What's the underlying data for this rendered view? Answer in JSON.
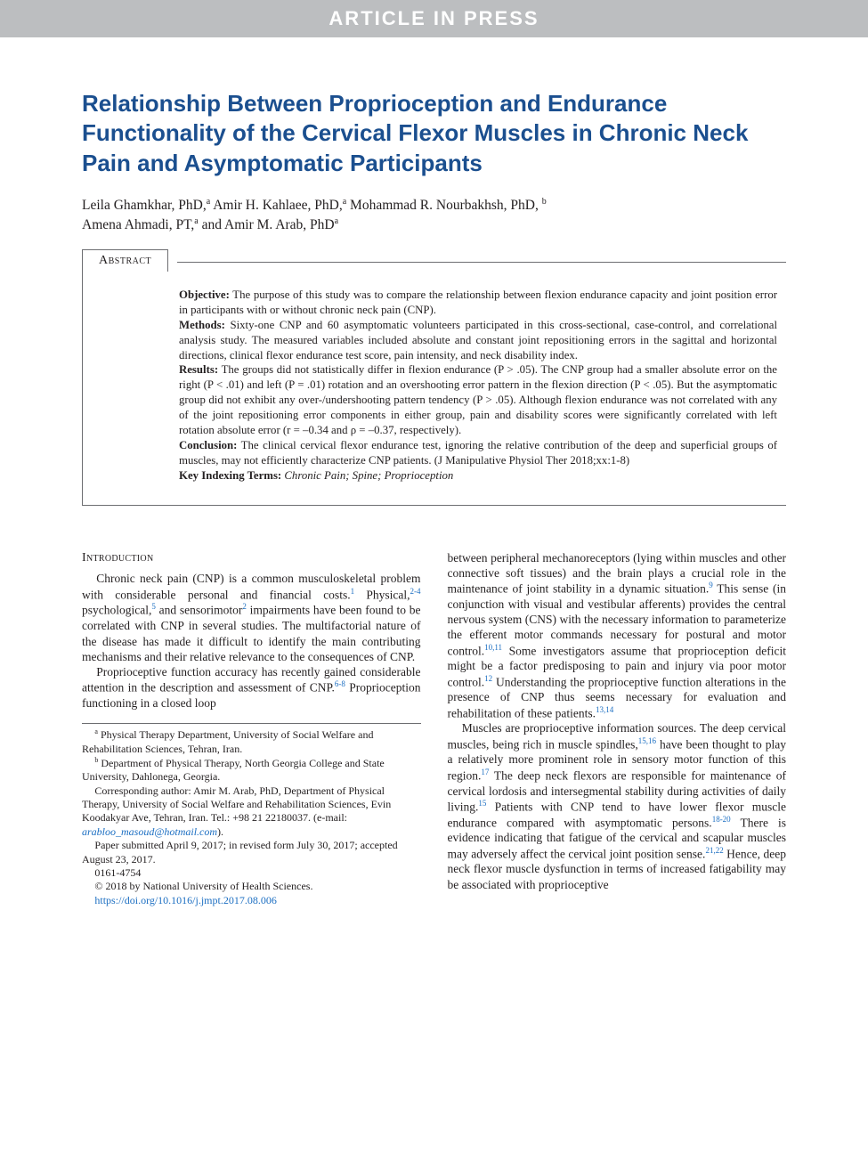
{
  "banner": "ARTICLE IN PRESS",
  "title": "Relationship Between Proprioception and Endurance Functionality of the Cervical Flexor Muscles in Chronic Neck Pain and Asymptomatic Participants",
  "authors_line1": "Leila Ghamkhar, PhD,",
  "aff_a1": "a",
  "authors_line1b": " Amir H. Kahlaee, PhD,",
  "aff_a2": "a",
  "authors_line1c": " Mohammad R. Nourbakhsh, PhD, ",
  "aff_b1": "b",
  "authors_line2a": "Amena Ahmadi, PT,",
  "aff_a3": "a",
  "authors_line2b": " and Amir M. Arab, PhD",
  "aff_a4": "a",
  "abstract_label": "Abstract",
  "abstract": {
    "objective_label": "Objective:",
    "objective": " The purpose of this study was to compare the relationship between flexion endurance capacity and joint position error in participants with or without chronic neck pain (CNP).",
    "methods_label": "Methods:",
    "methods": " Sixty-one CNP and 60 asymptomatic volunteers participated in this cross-sectional, case-control, and correlational analysis study. The measured variables included absolute and constant joint repositioning errors in the sagittal and horizontal directions, clinical flexor endurance test score, pain intensity, and neck disability index.",
    "results_label": "Results:",
    "results": " The groups did not statistically differ in flexion endurance (P > .05). The CNP group had a smaller absolute error on the right (P < .01) and left (P = .01) rotation and an overshooting error pattern in the flexion direction (P < .05). But the asymptomatic group did not exhibit any over-/undershooting pattern tendency (P > .05). Although flexion endurance was not correlated with any of the joint repositioning error components in either group, pain and disability scores were significantly correlated with left rotation absolute error (r = –0.34 and ρ = –0.37, respectively).",
    "conclusion_label": "Conclusion:",
    "conclusion": " The clinical cervical flexor endurance test, ignoring the relative contribution of the deep and superficial groups of muscles, may not efficiently characterize CNP patients. (J Manipulative Physiol Ther 2018;xx:1-8)",
    "keywords_label": "Key Indexing Terms:",
    "keywords": " Chronic Pain; Spine; Proprioception"
  },
  "section_intro": "Introduction",
  "left_p1a": "Chronic neck pain (CNP) is a common musculoskeletal problem with considerable personal and financial costs.",
  "cite1": "1",
  "left_p1b": " Physical,",
  "cite24": "2-4",
  "left_p1c": " psychological,",
  "cite5": "5",
  "left_p1d": " and sensorimotor",
  "cite2": "2",
  "left_p1e": " impairments have been found to be correlated with CNP in several studies. The multifactorial nature of the disease has made it difficult to identify the main contributing mechanisms and their relative relevance to the consequences of CNP.",
  "left_p2a": "Proprioceptive function accuracy has recently gained considerable attention in the description and assessment of CNP.",
  "cite68": "6-8",
  "left_p2b": " Proprioception functioning in a closed loop",
  "footnotes": {
    "a": " Physical Therapy Department, University of Social Welfare and Rehabilitation Sciences, Tehran, Iran.",
    "b": " Department of Physical Therapy, North Georgia College and State University, Dahlonega, Georgia.",
    "corr": "Corresponding author: Amir M. Arab, PhD, Department of Physical Therapy, University of Social Welfare and Rehabilitation Sciences, Evin Koodakyar Ave, Tehran, Iran. Tel.: +98 21 22180037. (e-mail: ",
    "email": "arabloo_masoud@hotmail.com",
    "corr_end": ").",
    "sub": "Paper submitted April 9, 2017; in revised form July 30, 2017; accepted August 23, 2017.",
    "issn": "0161-4754",
    "cpy": "© 2018 by National University of Health Sciences.",
    "doi": "https://doi.org/10.1016/j.jmpt.2017.08.006"
  },
  "right_p1a": "between peripheral mechanoreceptors (lying within muscles and other connective soft tissues) and the brain plays a crucial role in the maintenance of joint stability in a dynamic situation.",
  "cite9": "9",
  "right_p1b": " This sense (in conjunction with visual and vestibular afferents) provides the central nervous system (CNS) with the necessary information to parameterize the efferent motor commands necessary for postural and motor control.",
  "cite1011": "10,11",
  "right_p1c": " Some investigators assume that proprioception deficit might be a factor predisposing to pain and injury via poor motor control.",
  "cite12": "12",
  "right_p1d": " Understanding the proprioceptive function alterations in the presence of CNP thus seems necessary for evaluation and rehabilitation of these patients.",
  "cite1314": "13,14",
  "right_p2a": "Muscles are proprioceptive information sources. The deep cervical muscles, being rich in muscle spindles,",
  "cite1516": "15,16",
  "right_p2b": " have been thought to play a relatively more prominent role in sensory motor function of this region.",
  "cite17": "17",
  "right_p2c": " The deep neck flexors are responsible for maintenance of cervical lordosis and intersegmental stability during activities of daily living.",
  "cite15": "15",
  "right_p2d": " Patients with CNP tend to have lower flexor muscle endurance compared with asymptomatic persons.",
  "cite1820": "18-20",
  "right_p2e": " There is evidence indicating that fatigue of the cervical and scapular muscles may adversely affect the cervical joint position sense.",
  "cite2122": "21,22",
  "right_p2f": " Hence, deep neck flexor muscle dysfunction in terms of increased fatigability may be associated with proprioceptive"
}
